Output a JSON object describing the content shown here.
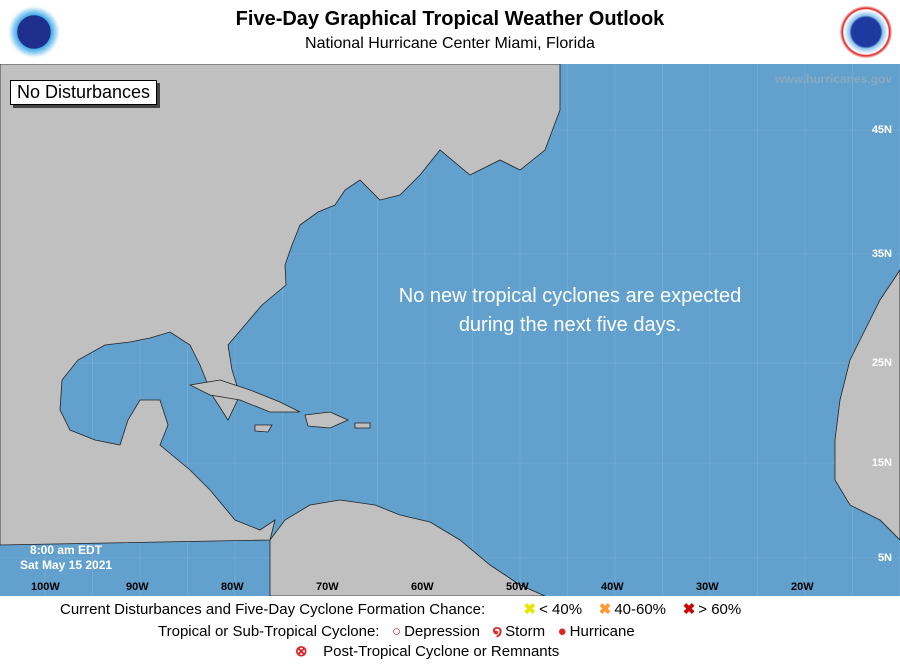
{
  "header": {
    "title": "Five-Day Graphical Tropical Weather Outlook",
    "subtitle": "National Hurricane Center  Miami, Florida",
    "left_logo": "NOAA",
    "right_logo": "National Weather Service"
  },
  "map": {
    "status_box": "No Disturbances",
    "website": "www.hurricanes.gov",
    "message_line1": "No new tropical cyclones are expected",
    "message_line2": "during the next five days.",
    "time": "8:00 am EDT",
    "date": "Sat May 15 2021",
    "lat_labels": [
      "45N",
      "35N",
      "25N",
      "15N",
      "5N"
    ],
    "lon_labels": [
      "100W",
      "90W",
      "80W",
      "70W",
      "60W",
      "50W",
      "40W",
      "30W",
      "20W"
    ],
    "colors": {
      "ocean": "#62a0cd",
      "land": "#c0c0c0"
    }
  },
  "legend": {
    "formation_label": "Current Disturbances and Five-Day Cyclone Formation Chance:",
    "low": "< 40%",
    "mid": "40-60%",
    "high": "> 60%",
    "cyclone_label": "Tropical or Sub-Tropical Cyclone:",
    "depression": "Depression",
    "storm": "Storm",
    "hurricane": "Hurricane",
    "post": "Post-Tropical Cyclone or Remnants",
    "colors": {
      "low": "#ffff00",
      "mid": "#ff9933",
      "high": "#cc0000",
      "cyclone": "#dd2222"
    }
  }
}
